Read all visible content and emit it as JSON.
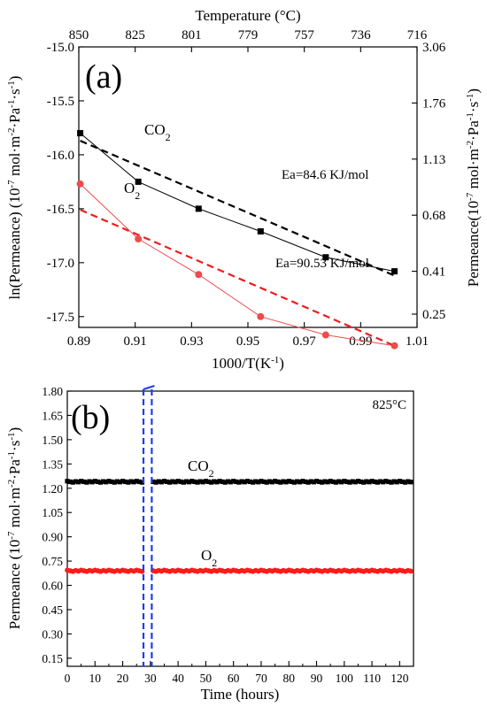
{
  "chart_data": [
    {
      "type": "line",
      "panel_label": "(a)",
      "xlabel": "1000/T(K",
      "xlabel_sup": "-1",
      "xlabel_end": ")",
      "xlim": [
        0.89,
        1.01
      ],
      "xticks": [
        "0.89",
        "0.91",
        "0.93",
        "0.95",
        "0.97",
        "0.99",
        "1.01"
      ],
      "ylabel": "ln(Permeance) (10",
      "ylabel_sup1": "-7",
      "ylabel_mid1": " mol·m",
      "ylabel_sup2": "-2",
      "ylabel_mid2": "·Pa",
      "ylabel_sup3": "-1",
      "ylabel_mid3": "·s",
      "ylabel_sup4": "-1",
      "ylabel_end": ")",
      "ylim": [
        -17.6,
        -15.0
      ],
      "yticks": [
        "-15.0",
        "-15.5",
        "-16.0",
        "-16.5",
        "-17.0",
        "-17.5"
      ],
      "top_axis": {
        "label": "Temperature (°C)",
        "ticks": [
          "850",
          "825",
          "801",
          "779",
          "757",
          "736",
          "716"
        ]
      },
      "right_axis": {
        "label": "Permeance(10",
        "label_sup1": "-7",
        "label_mid1": " mol·m",
        "label_sup2": "-2",
        "label_mid2": "·Pa",
        "label_sup3": "-1",
        "label_mid3": "·s",
        "label_sup4": "-1",
        "label_end": ")",
        "ticks": [
          "3.06",
          "1.76",
          "1.13",
          "0.68",
          "0.41",
          "0.25"
        ]
      },
      "series": [
        {
          "name": "CO2",
          "label_main": "CO",
          "label_sub": "2",
          "color": "#000000",
          "marker": "square",
          "x": [
            0.8905,
            0.9111,
            0.9325,
            0.9545,
            0.9776,
            1.002
          ],
          "y": [
            -15.8,
            -16.25,
            -16.5,
            -16.71,
            -16.95,
            -17.08
          ],
          "fit": {
            "x": [
              0.8905,
              1.002
            ],
            "y": [
              -15.87,
              -17.12
            ],
            "color": "#000000"
          },
          "annotation": "Ea=84.6 KJ/mol"
        },
        {
          "name": "O2",
          "label_main": "O",
          "label_sub": "2",
          "color": "#ee4b4b",
          "marker": "circle",
          "x": [
            0.8905,
            0.9111,
            0.9325,
            0.9545,
            0.9776,
            1.002
          ],
          "y": [
            -16.27,
            -16.78,
            -17.11,
            -17.5,
            -17.67,
            -17.77
          ],
          "fit": {
            "x": [
              0.8905,
              1.002
            ],
            "y": [
              -16.51,
              -17.77
            ],
            "color": "#ee1c1c"
          },
          "annotation": "Ea=90.53 KJ/mol"
        }
      ]
    },
    {
      "type": "scatter",
      "panel_label": "(b)",
      "temperature_label": "825°C",
      "xlabel": "Time (hours)",
      "xlim": [
        0,
        125
      ],
      "xticks": [
        "0",
        "10",
        "20",
        "30",
        "40",
        "50",
        "60",
        "70",
        "80",
        "90",
        "100",
        "110",
        "120"
      ],
      "ylabel": "Permeance (10",
      "ylabel_sup1": "-7",
      "ylabel_mid1": " mol·m",
      "ylabel_sup2": "-2",
      "ylabel_mid2": "·Pa",
      "ylabel_sup3": "-1",
      "ylabel_mid3": "·s",
      "ylabel_sup4": "-1",
      "ylabel_end": ")",
      "ylim": [
        0.1,
        1.8
      ],
      "yticks": [
        "1.80",
        "1.65",
        "1.50",
        "1.35",
        "1.20",
        "1.05",
        "0.90",
        "0.75",
        "0.60",
        "0.45",
        "0.30",
        "0.15"
      ],
      "gap_hours": [
        27.5,
        30.5
      ],
      "series": [
        {
          "name": "CO2",
          "label_main": "CO",
          "label_sub": "2",
          "color": "#000000",
          "marker": "square",
          "value": 1.24,
          "x_range": [
            0,
            124
          ]
        },
        {
          "name": "O2",
          "label_main": "O",
          "label_sub": "2",
          "color": "#ff1a1a",
          "marker": "circle",
          "value": 0.69,
          "x_range": [
            0,
            124
          ]
        }
      ]
    }
  ]
}
